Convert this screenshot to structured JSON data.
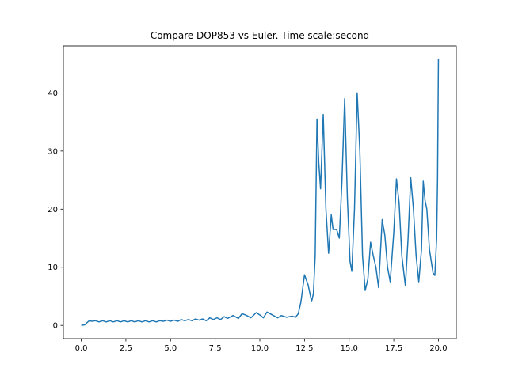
{
  "chart_data": {
    "type": "line",
    "title": "Compare DOP853 vs Euler. Time scale:second",
    "x": [
      0,
      0.2,
      0.3,
      0.45,
      0.6,
      0.8,
      1.0,
      1.2,
      1.4,
      1.6,
      1.8,
      2.0,
      2.2,
      2.4,
      2.6,
      2.8,
      3.0,
      3.2,
      3.4,
      3.6,
      3.8,
      4.0,
      4.2,
      4.4,
      4.6,
      4.8,
      5.0,
      5.2,
      5.4,
      5.6,
      5.8,
      6.0,
      6.2,
      6.4,
      6.6,
      6.8,
      7.0,
      7.2,
      7.4,
      7.6,
      7.8,
      8.0,
      8.2,
      8.5,
      8.8,
      9.0,
      9.2,
      9.5,
      9.8,
      10.0,
      10.2,
      10.4,
      10.7,
      11.0,
      11.2,
      11.5,
      11.8,
      12.0,
      12.15,
      12.3,
      12.5,
      12.7,
      12.9,
      13.0,
      13.1,
      13.2,
      13.3,
      13.4,
      13.55,
      13.7,
      13.85,
      14.0,
      14.1,
      14.3,
      14.45,
      14.6,
      14.75,
      14.9,
      15.05,
      15.15,
      15.3,
      15.45,
      15.6,
      15.75,
      15.9,
      16.05,
      16.2,
      16.35,
      16.5,
      16.65,
      16.85,
      17.0,
      17.15,
      17.3,
      17.5,
      17.65,
      17.8,
      17.95,
      18.15,
      18.3,
      18.45,
      18.6,
      18.75,
      18.9,
      19.05,
      19.15,
      19.25,
      19.35,
      19.5,
      19.7,
      19.8,
      19.9,
      19.95,
      20.0
    ],
    "series": [
      {
        "name": "DOP853 vs Euler",
        "color": "#1f77b4",
        "values": [
          0,
          0.1,
          0.4,
          0.8,
          0.7,
          0.8,
          0.6,
          0.8,
          0.6,
          0.8,
          0.6,
          0.8,
          0.6,
          0.8,
          0.6,
          0.8,
          0.6,
          0.8,
          0.6,
          0.8,
          0.6,
          0.8,
          0.6,
          0.8,
          0.7,
          0.9,
          0.7,
          0.9,
          0.7,
          1.0,
          0.8,
          1.0,
          0.8,
          1.1,
          0.9,
          1.1,
          0.8,
          1.3,
          1.0,
          1.3,
          1.0,
          1.5,
          1.2,
          1.7,
          1.2,
          2.0,
          1.8,
          1.3,
          2.2,
          1.8,
          1.3,
          2.3,
          1.8,
          1.3,
          1.7,
          1.4,
          1.6,
          1.4,
          2.0,
          4.0,
          8.7,
          7.0,
          4.1,
          5.5,
          12,
          35.5,
          28,
          23.5,
          36.3,
          20,
          12.4,
          19,
          16.5,
          16.5,
          15,
          25,
          39,
          22,
          11,
          9.3,
          20,
          40,
          30,
          12,
          6,
          8,
          14.3,
          12,
          10,
          6.5,
          18.2,
          15.5,
          10,
          7.5,
          16,
          25.2,
          21,
          12,
          6.8,
          15,
          25.4,
          20,
          12,
          7.5,
          13,
          24.8,
          21.5,
          20,
          13,
          9,
          8.6,
          15,
          25,
          45.8
        ]
      }
    ],
    "xlim": [
      -1.0,
      21.0
    ],
    "ylim": [
      -2.29,
      48.09
    ],
    "xticks": [
      {
        "value": 0,
        "label": "0.0"
      },
      2.5,
      {
        "value": 5,
        "label": "5.0"
      },
      7.5,
      {
        "value": 10,
        "label": "10.0"
      },
      12.5,
      {
        "value": 15,
        "label": "15.0"
      },
      17.5,
      {
        "value": 20,
        "label": "20.0"
      }
    ],
    "yticks": [
      0,
      10,
      20,
      30,
      40
    ],
    "grid": false
  }
}
